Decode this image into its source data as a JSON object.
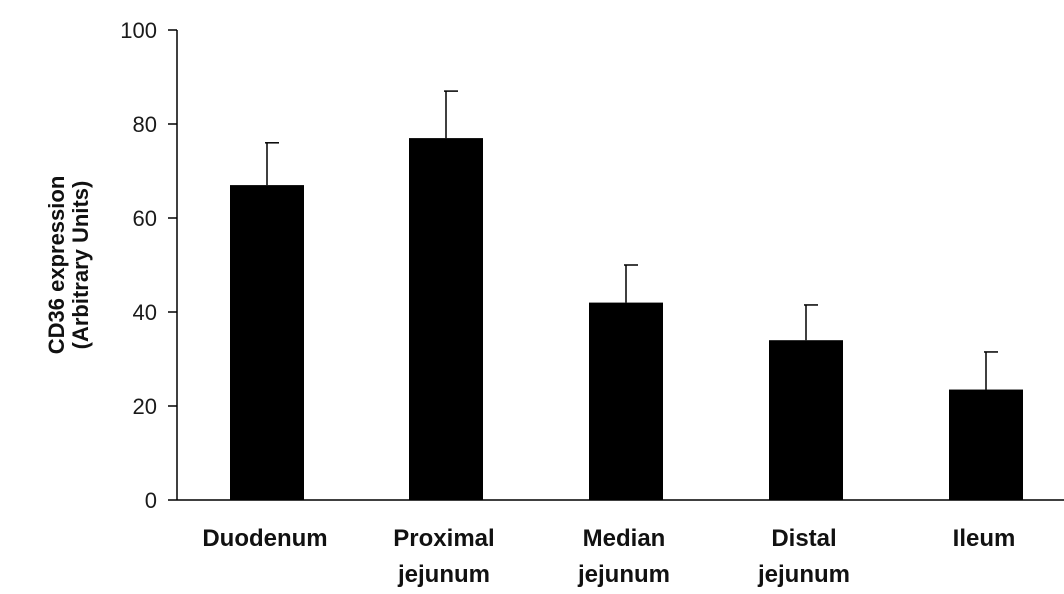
{
  "chart_data": {
    "type": "bar",
    "title": "",
    "xlabel": "",
    "ylabel_lines": [
      "CD36 expression",
      "(Arbitrary Units)"
    ],
    "categories": [
      [
        "Duodenum"
      ],
      [
        "Proximal",
        "jejunum"
      ],
      [
        "Median",
        "jejunum"
      ],
      [
        "Distal",
        "jejunum"
      ],
      [
        "Ileum"
      ]
    ],
    "values": [
      67,
      77,
      42,
      34,
      23.5
    ],
    "errors": [
      9,
      10,
      8,
      7.5,
      8
    ],
    "ylim": [
      0,
      100
    ],
    "yticks": [
      0,
      20,
      40,
      60,
      80,
      100
    ],
    "grid": false,
    "bar_color": "#000000"
  }
}
